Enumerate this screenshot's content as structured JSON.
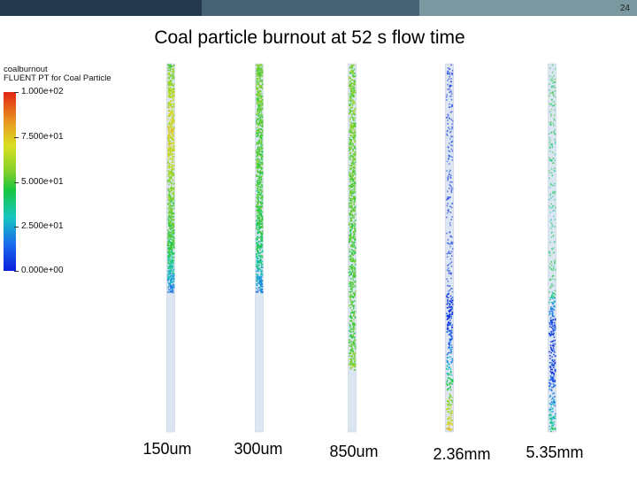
{
  "page_number": "24",
  "title": "Coal particle burnout at 52 s flow time",
  "legend": {
    "variable": "coalburnout",
    "source": "FLUENT PT for Coal Particle",
    "ticks": [
      "1.000e+02",
      "7.500e+01",
      "5.000e+01",
      "2.500e+01",
      "0.000e+00"
    ]
  },
  "header_bar_colors": [
    "#24384e",
    "#486275",
    "#79989f"
  ],
  "colormap": [
    "#0a1edc",
    "#1a6cec",
    "#17c6c0",
    "#16c640",
    "#7fcf2a",
    "#dadf22",
    "#e8a020",
    "#e12515"
  ],
  "cases": [
    {
      "label": "150um",
      "particle_top_fraction": 0.0,
      "particle_bottom_fraction": 0.62,
      "burnout_profile": [
        55,
        62,
        70,
        72,
        68,
        60,
        55,
        50,
        45,
        30,
        15
      ],
      "density": "dense"
    },
    {
      "label": "300um",
      "particle_top_fraction": 0.0,
      "particle_bottom_fraction": 0.62,
      "burnout_profile": [
        55,
        55,
        52,
        50,
        50,
        50,
        48,
        45,
        40,
        30,
        15
      ],
      "density": "dense"
    },
    {
      "label": "850um",
      "particle_top_fraction": 0.0,
      "particle_bottom_fraction": 0.83,
      "burnout_profile": [
        55,
        55,
        55,
        55,
        52,
        52,
        50,
        50,
        50,
        48,
        60
      ],
      "density": "dense"
    },
    {
      "label": "2.36mm",
      "particle_top_fraction": 0.0,
      "particle_bottom_fraction": 1.0,
      "burnout_profile": [
        0,
        2,
        2,
        3,
        2,
        2,
        3,
        5,
        20,
        55,
        80
      ],
      "density": "sparse-top"
    },
    {
      "label": "5.35mm",
      "particle_top_fraction": 0.0,
      "particle_bottom_fraction": 1.0,
      "burnout_profile": [
        40,
        45,
        40,
        40,
        35,
        40,
        45,
        5,
        2,
        15,
        40
      ],
      "density": "sparse-top"
    }
  ]
}
